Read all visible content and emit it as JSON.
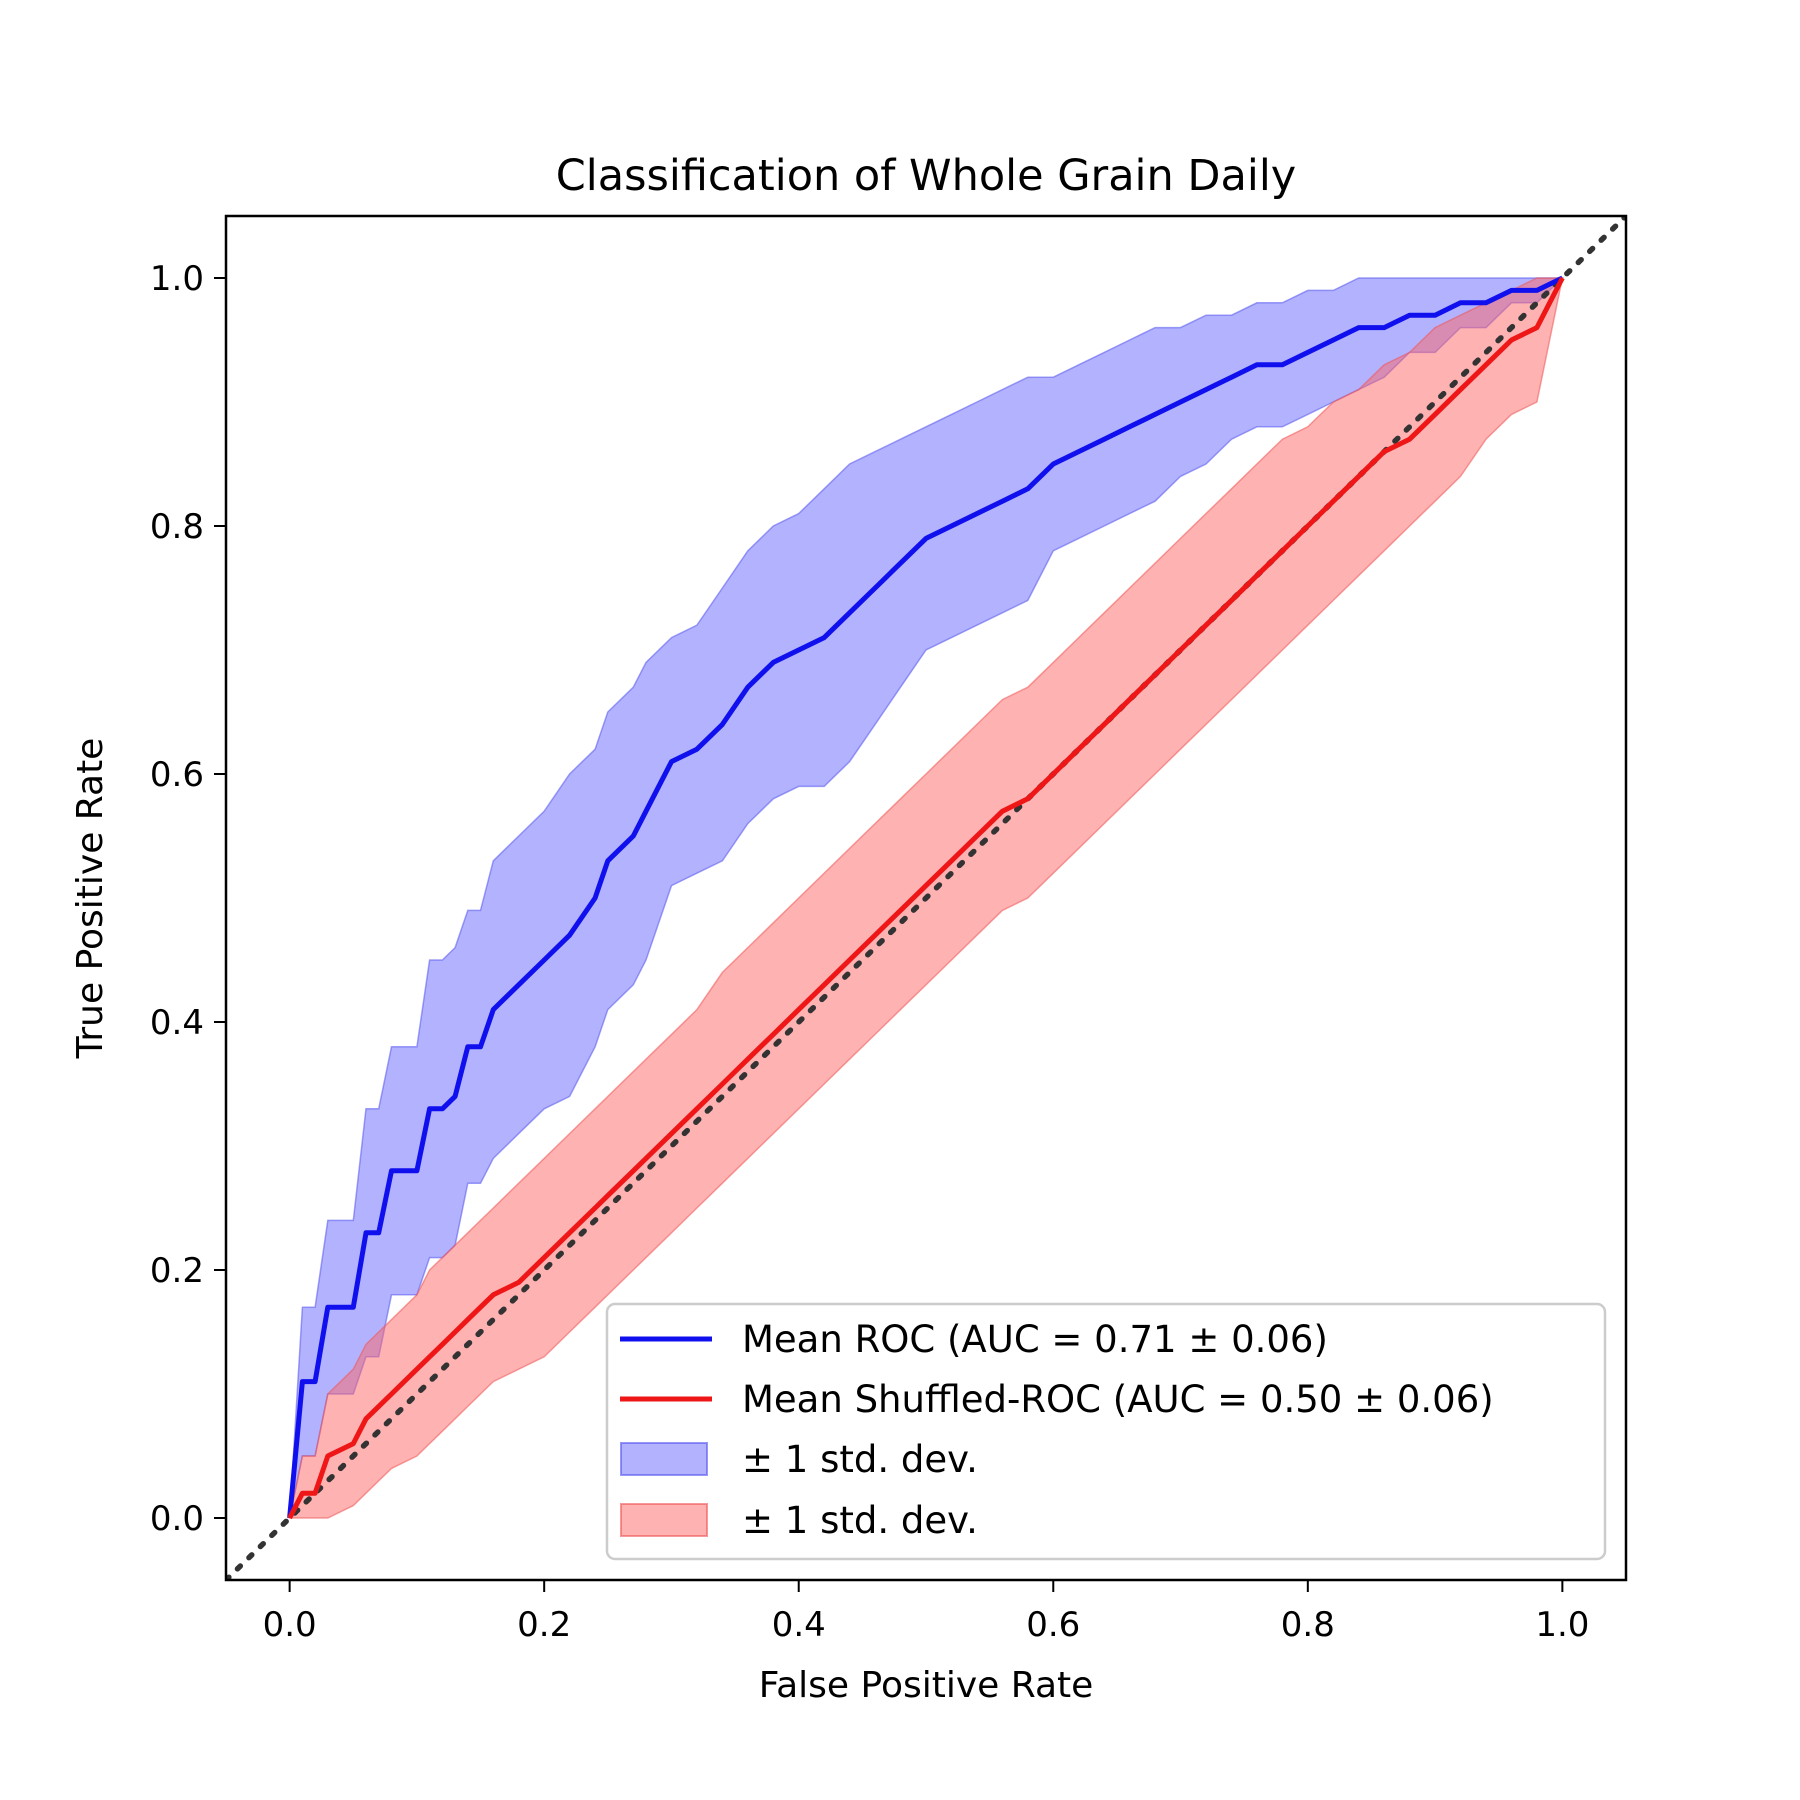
{
  "chart_data": {
    "type": "line",
    "title": "Classification of Whole Grain Daily",
    "xlabel": "False Positive Rate",
    "ylabel": "True Positive Rate",
    "xlim": [
      -0.05,
      1.05
    ],
    "ylim": [
      -0.05,
      1.05
    ],
    "xticks": [
      "0.0",
      "0.2",
      "0.4",
      "0.6",
      "0.8",
      "1.0"
    ],
    "yticks": [
      "0.0",
      "0.2",
      "0.4",
      "0.6",
      "0.8",
      "1.0"
    ],
    "grid": false,
    "legend_position": "lower-right",
    "legend": [
      "Mean ROC (AUC = 0.71 ± 0.06)",
      "Mean Shuffled-ROC (AUC = 0.50 ± 0.06)",
      "± 1 std. dev.",
      "± 1 std. dev."
    ],
    "x": [
      0,
      0.01,
      0.02,
      0.03,
      0.05,
      0.06,
      0.07,
      0.08,
      0.1,
      0.11,
      0.12,
      0.13,
      0.14,
      0.15,
      0.16,
      0.18,
      0.2,
      0.22,
      0.24,
      0.25,
      0.27,
      0.28,
      0.3,
      0.32,
      0.34,
      0.36,
      0.38,
      0.4,
      0.42,
      0.44,
      0.46,
      0.48,
      0.5,
      0.52,
      0.54,
      0.56,
      0.58,
      0.6,
      0.62,
      0.64,
      0.66,
      0.68,
      0.7,
      0.72,
      0.74,
      0.76,
      0.78,
      0.8,
      0.82,
      0.84,
      0.86,
      0.88,
      0.9,
      0.92,
      0.94,
      0.96,
      0.98,
      1.0
    ],
    "series": [
      {
        "name": "Mean ROC",
        "color": "#1010ee",
        "y": [
          0,
          0.11,
          0.11,
          0.17,
          0.17,
          0.23,
          0.23,
          0.28,
          0.28,
          0.33,
          0.33,
          0.34,
          0.38,
          0.38,
          0.41,
          0.43,
          0.45,
          0.47,
          0.5,
          0.53,
          0.55,
          0.57,
          0.61,
          0.62,
          0.64,
          0.67,
          0.69,
          0.7,
          0.71,
          0.73,
          0.75,
          0.77,
          0.79,
          0.8,
          0.81,
          0.82,
          0.83,
          0.85,
          0.86,
          0.87,
          0.88,
          0.89,
          0.9,
          0.91,
          0.92,
          0.93,
          0.93,
          0.94,
          0.95,
          0.96,
          0.96,
          0.97,
          0.97,
          0.98,
          0.98,
          0.99,
          0.99,
          1.0
        ],
        "upper": [
          0,
          0.17,
          0.17,
          0.24,
          0.24,
          0.33,
          0.33,
          0.38,
          0.38,
          0.45,
          0.45,
          0.46,
          0.49,
          0.49,
          0.53,
          0.55,
          0.57,
          0.6,
          0.62,
          0.65,
          0.67,
          0.69,
          0.71,
          0.72,
          0.75,
          0.78,
          0.8,
          0.81,
          0.83,
          0.85,
          0.86,
          0.87,
          0.88,
          0.89,
          0.9,
          0.91,
          0.92,
          0.92,
          0.93,
          0.94,
          0.95,
          0.96,
          0.96,
          0.97,
          0.97,
          0.98,
          0.98,
          0.99,
          0.99,
          1.0,
          1.0,
          1.0,
          1.0,
          1.0,
          1.0,
          1.0,
          1.0,
          1.0
        ],
        "lower": [
          0,
          0.05,
          0.05,
          0.1,
          0.1,
          0.13,
          0.13,
          0.18,
          0.18,
          0.21,
          0.21,
          0.22,
          0.27,
          0.27,
          0.29,
          0.31,
          0.33,
          0.34,
          0.38,
          0.41,
          0.43,
          0.45,
          0.51,
          0.52,
          0.53,
          0.56,
          0.58,
          0.59,
          0.59,
          0.61,
          0.64,
          0.67,
          0.7,
          0.71,
          0.72,
          0.73,
          0.74,
          0.78,
          0.79,
          0.8,
          0.81,
          0.82,
          0.84,
          0.85,
          0.87,
          0.88,
          0.88,
          0.89,
          0.9,
          0.91,
          0.92,
          0.94,
          0.94,
          0.96,
          0.96,
          0.98,
          0.98,
          1.0
        ]
      },
      {
        "name": "Mean Shuffled-ROC",
        "color": "#ee1616",
        "y": [
          0,
          0.02,
          0.02,
          0.05,
          0.06,
          0.08,
          0.09,
          0.1,
          0.12,
          0.13,
          0.14,
          0.15,
          0.16,
          0.17,
          0.18,
          0.19,
          0.21,
          0.23,
          0.25,
          0.26,
          0.28,
          0.29,
          0.31,
          0.33,
          0.35,
          0.37,
          0.39,
          0.41,
          0.43,
          0.45,
          0.47,
          0.49,
          0.51,
          0.53,
          0.55,
          0.57,
          0.58,
          0.6,
          0.62,
          0.64,
          0.66,
          0.68,
          0.7,
          0.72,
          0.74,
          0.76,
          0.78,
          0.8,
          0.82,
          0.84,
          0.86,
          0.87,
          0.89,
          0.91,
          0.93,
          0.95,
          0.96,
          1.0
        ],
        "upper": [
          0,
          0.05,
          0.05,
          0.1,
          0.12,
          0.14,
          0.15,
          0.16,
          0.18,
          0.2,
          0.21,
          0.22,
          0.23,
          0.24,
          0.25,
          0.27,
          0.29,
          0.31,
          0.33,
          0.34,
          0.36,
          0.37,
          0.39,
          0.41,
          0.44,
          0.46,
          0.48,
          0.5,
          0.52,
          0.54,
          0.56,
          0.58,
          0.6,
          0.62,
          0.64,
          0.66,
          0.67,
          0.69,
          0.71,
          0.73,
          0.75,
          0.77,
          0.79,
          0.81,
          0.83,
          0.85,
          0.87,
          0.88,
          0.9,
          0.91,
          0.93,
          0.94,
          0.96,
          0.97,
          0.98,
          0.99,
          1.0,
          1.0
        ],
        "lower": [
          0,
          0.0,
          0.0,
          0.0,
          0.01,
          0.02,
          0.03,
          0.04,
          0.05,
          0.06,
          0.07,
          0.08,
          0.09,
          0.1,
          0.11,
          0.12,
          0.13,
          0.15,
          0.17,
          0.18,
          0.2,
          0.21,
          0.23,
          0.25,
          0.27,
          0.29,
          0.31,
          0.33,
          0.35,
          0.37,
          0.39,
          0.41,
          0.43,
          0.45,
          0.47,
          0.49,
          0.5,
          0.52,
          0.54,
          0.56,
          0.58,
          0.6,
          0.62,
          0.64,
          0.66,
          0.68,
          0.7,
          0.72,
          0.74,
          0.76,
          0.78,
          0.8,
          0.82,
          0.84,
          0.87,
          0.89,
          0.9,
          1.0
        ]
      }
    ],
    "reference_line": {
      "type": "diagonal",
      "style": "dotted",
      "color": "#333333"
    }
  }
}
